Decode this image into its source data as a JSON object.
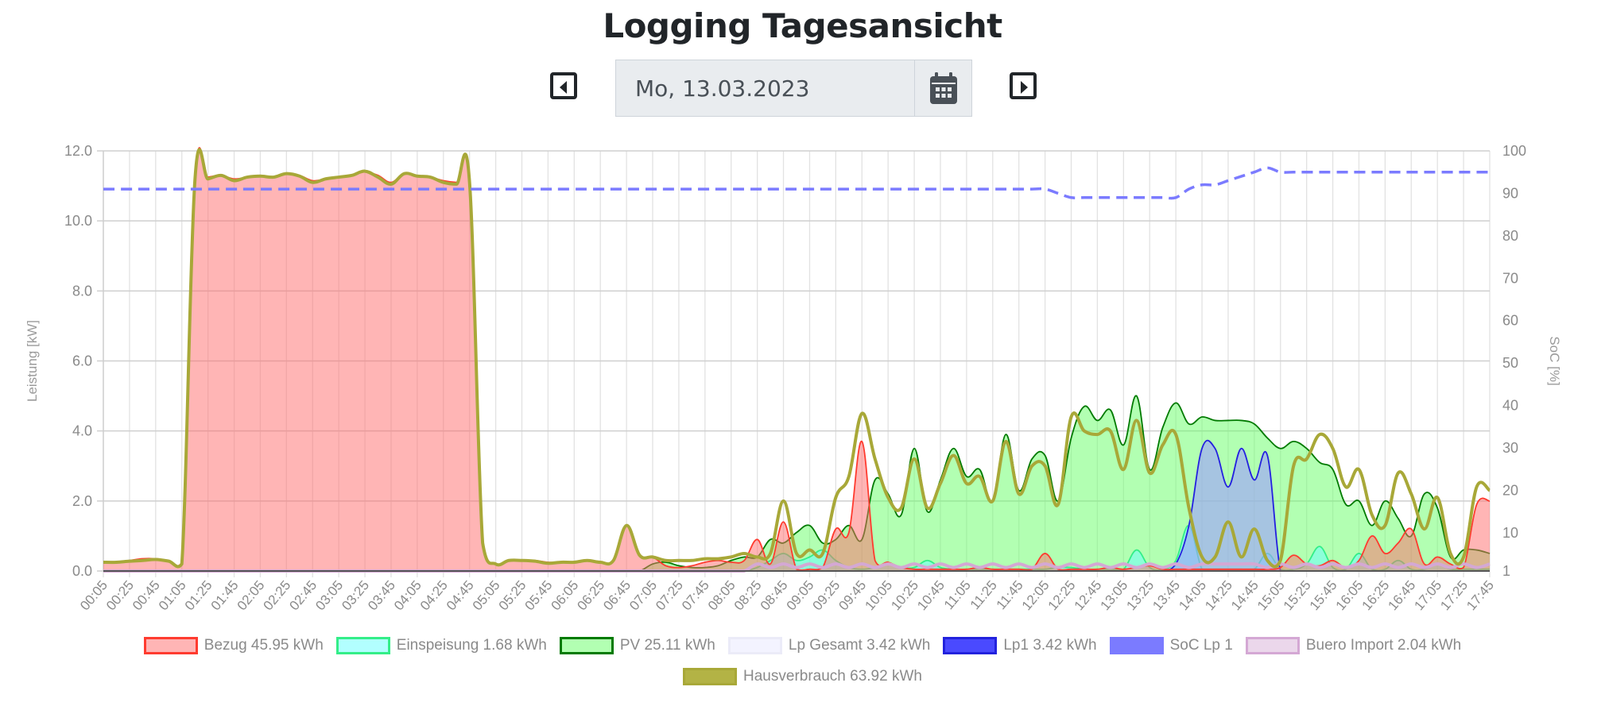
{
  "header": {
    "title": "Logging Tagesansicht",
    "date_value": "Mo, 13.03.2023",
    "prev_icon": "caret-left-square-icon",
    "next_icon": "caret-right-square-icon",
    "calendar_icon": "calendar-icon"
  },
  "chart_data": {
    "type": "line",
    "title": "",
    "ylabel": "Leistung [kW]",
    "y2label": "SoC [%]",
    "ylim": [
      0,
      12
    ],
    "y2lim": [
      1,
      100
    ],
    "yticks": [
      "0.0",
      "2.0",
      "4.0",
      "6.0",
      "8.0",
      "10.0",
      "12.0"
    ],
    "y2ticks": [
      "1",
      "10",
      "20",
      "30",
      "40",
      "50",
      "60",
      "70",
      "80",
      "90",
      "100"
    ],
    "grid": true,
    "legend_placement": "bottom",
    "x": [
      "00:05",
      "00:15",
      "00:25",
      "00:35",
      "00:45",
      "00:55",
      "01:05",
      "01:15",
      "01:25",
      "01:35",
      "01:45",
      "01:55",
      "02:05",
      "02:15",
      "02:25",
      "02:35",
      "02:45",
      "02:55",
      "03:05",
      "03:15",
      "03:25",
      "03:35",
      "03:45",
      "03:55",
      "04:05",
      "04:15",
      "04:25",
      "04:35",
      "04:45",
      "04:55",
      "05:05",
      "05:15",
      "05:25",
      "05:35",
      "05:45",
      "05:55",
      "06:05",
      "06:15",
      "06:25",
      "06:35",
      "06:45",
      "06:55",
      "07:05",
      "07:15",
      "07:25",
      "07:35",
      "07:45",
      "07:55",
      "08:05",
      "08:15",
      "08:25",
      "08:35",
      "08:45",
      "08:55",
      "09:05",
      "09:15",
      "09:25",
      "09:35",
      "09:45",
      "09:55",
      "10:05",
      "10:15",
      "10:25",
      "10:35",
      "10:45",
      "10:55",
      "11:05",
      "11:15",
      "11:25",
      "11:35",
      "11:45",
      "11:55",
      "12:05",
      "12:15",
      "12:25",
      "12:35",
      "12:45",
      "12:55",
      "13:05",
      "13:15",
      "13:25",
      "13:35",
      "13:45",
      "13:55",
      "14:05",
      "14:15",
      "14:25",
      "14:35",
      "14:45",
      "14:55",
      "15:05",
      "15:15",
      "15:25",
      "15:35",
      "15:45",
      "15:55",
      "16:05",
      "16:15",
      "16:25",
      "16:35",
      "16:45",
      "16:55",
      "17:05",
      "17:15",
      "17:25",
      "17:35",
      "17:45"
    ],
    "series": [
      {
        "name": "Bezug 45.95 kWh",
        "key": "bezug",
        "axis": "left",
        "fill": true,
        "line_color": "#ff3b2f",
        "fill_color": "#ff6b6b",
        "values": [
          0.25,
          0.25,
          0.3,
          0.35,
          0.35,
          0.3,
          0.25,
          11.2,
          11.25,
          11.3,
          11.2,
          11.25,
          11.3,
          11.25,
          11.35,
          11.3,
          11.15,
          11.2,
          11.25,
          11.3,
          11.4,
          11.3,
          11.1,
          11.35,
          11.3,
          11.25,
          11.15,
          11.1,
          11.1,
          0.8,
          0.2,
          0.3,
          0.3,
          0.3,
          0.25,
          0.25,
          0.25,
          0.3,
          0.25,
          0.3,
          1.3,
          0.45,
          0.4,
          0.15,
          0.1,
          0.15,
          0.25,
          0.3,
          0.25,
          0.3,
          0.9,
          0.2,
          1.4,
          0.05,
          0.05,
          0.1,
          1.2,
          1.1,
          3.7,
          0.3,
          0.25,
          0.1,
          0.05,
          0.05,
          0.05,
          0.05,
          0.05,
          0.1,
          0.05,
          0.05,
          0.05,
          0.05,
          0.5,
          0.05,
          0.05,
          0.05,
          0.05,
          0.1,
          0.05,
          0.1,
          0.15,
          0.05,
          0.05,
          0.05,
          0.05,
          0.05,
          0.05,
          0.05,
          0.05,
          0.05,
          0.1,
          0.45,
          0.2,
          0.15,
          0.3,
          0.1,
          0.3,
          1.0,
          0.5,
          0.8,
          1.2,
          0.2,
          0.4,
          0.2,
          0.1,
          1.9,
          2.0
        ]
      },
      {
        "name": "Einspeisung 1.68 kWh",
        "key": "einspeisung",
        "axis": "left",
        "fill": true,
        "line_color": "#33ee88",
        "fill_color": "#66ffff",
        "values": [
          0,
          0,
          0,
          0,
          0,
          0,
          0,
          0,
          0,
          0,
          0,
          0,
          0,
          0,
          0,
          0,
          0,
          0,
          0,
          0,
          0,
          0,
          0,
          0,
          0,
          0,
          0,
          0,
          0,
          0,
          0,
          0,
          0,
          0,
          0,
          0,
          0,
          0,
          0,
          0,
          0,
          0,
          0,
          0,
          0,
          0,
          0,
          0,
          0,
          0,
          0.1,
          0.3,
          0.5,
          0.3,
          0.4,
          0.6,
          0.3,
          0.1,
          0.05,
          0.1,
          0.2,
          0.1,
          0.1,
          0.3,
          0.1,
          0.05,
          0.05,
          0.05,
          0.05,
          0.05,
          0.05,
          0.05,
          0.05,
          0.1,
          0.1,
          0.05,
          0.05,
          0.05,
          0.05,
          0.6,
          0.1,
          0.05,
          0.3,
          1.3,
          0.05,
          0.05,
          0.05,
          0.05,
          0.05,
          0.5,
          0.05,
          0.05,
          0.2,
          0.7,
          0.1,
          0.05,
          0.5,
          0.05,
          0.05,
          0.3,
          0.05,
          0.05,
          0.2,
          0.05,
          0.05,
          0.05,
          0.05
        ]
      },
      {
        "name": "PV 25.11 kWh",
        "key": "pv",
        "axis": "left",
        "fill": true,
        "line_color": "#007a00",
        "fill_color": "#66ff66",
        "values": [
          0,
          0,
          0,
          0,
          0,
          0,
          0,
          0,
          0,
          0,
          0,
          0,
          0,
          0,
          0,
          0,
          0,
          0,
          0,
          0,
          0,
          0,
          0,
          0,
          0,
          0,
          0,
          0,
          0,
          0,
          0,
          0,
          0,
          0,
          0,
          0,
          0,
          0,
          0,
          0,
          0,
          0,
          0.2,
          0.25,
          0.15,
          0.1,
          0.1,
          0.15,
          0.3,
          0.4,
          0.4,
          0.9,
          0.8,
          1.1,
          1.3,
          0.8,
          0.9,
          1.3,
          0.9,
          2.6,
          2.2,
          1.6,
          3.5,
          1.7,
          2.6,
          3.5,
          2.7,
          2.9,
          2.0,
          3.9,
          2.3,
          3.2,
          3.3,
          2.0,
          3.8,
          4.7,
          4.3,
          4.6,
          3.6,
          5.0,
          2.9,
          4.1,
          4.8,
          4.2,
          4.4,
          4.3,
          4.3,
          4.3,
          4.2,
          3.8,
          3.5,
          3.7,
          3.5,
          3.1,
          2.9,
          1.9,
          2.0,
          1.3,
          2.0,
          1.5,
          1.0,
          2.2,
          1.8,
          0.4,
          0.6,
          0.6,
          0.5
        ]
      },
      {
        "name": "Lp Gesamt 3.42 kWh",
        "key": "lpgesamt",
        "axis": "left",
        "fill": true,
        "line_color": "#d8d8f2",
        "fill_color": "#d0d0ff",
        "values": [
          0,
          0,
          0,
          0,
          0,
          0,
          0,
          0,
          0,
          0,
          0,
          0,
          0,
          0,
          0,
          0,
          0,
          0,
          0,
          0,
          0,
          0,
          0,
          0,
          0,
          0,
          0,
          0,
          0,
          0,
          0,
          0,
          0,
          0,
          0,
          0,
          0,
          0,
          0,
          0,
          0,
          0,
          0,
          0,
          0,
          0,
          0,
          0,
          0,
          0,
          0,
          0,
          0,
          0,
          0,
          0,
          0,
          0,
          0,
          0,
          0,
          0,
          0,
          0,
          0,
          0,
          0,
          0,
          0,
          0,
          0,
          0,
          0,
          0,
          0,
          0,
          0,
          0,
          0,
          0,
          0,
          0,
          0.2,
          1.3,
          3.5,
          3.5,
          2.4,
          3.5,
          2.6,
          3.3,
          0,
          0,
          0,
          0,
          0,
          0,
          0,
          0,
          0,
          0,
          0,
          0,
          0,
          0,
          0,
          0,
          0
        ]
      },
      {
        "name": "Lp1 3.42 kWh",
        "key": "lp1",
        "axis": "left",
        "fill": true,
        "line_color": "#2222dd",
        "fill_color": "#4a4aff",
        "values": [
          0,
          0,
          0,
          0,
          0,
          0,
          0,
          0,
          0,
          0,
          0,
          0,
          0,
          0,
          0,
          0,
          0,
          0,
          0,
          0,
          0,
          0,
          0,
          0,
          0,
          0,
          0,
          0,
          0,
          0,
          0,
          0,
          0,
          0,
          0,
          0,
          0,
          0,
          0,
          0,
          0,
          0,
          0,
          0,
          0,
          0,
          0,
          0,
          0,
          0,
          0,
          0,
          0,
          0,
          0,
          0,
          0,
          0,
          0,
          0,
          0,
          0,
          0,
          0,
          0,
          0,
          0,
          0,
          0,
          0,
          0,
          0,
          0,
          0,
          0,
          0,
          0,
          0,
          0,
          0,
          0,
          0,
          0.2,
          1.3,
          3.5,
          3.5,
          2.4,
          3.5,
          2.6,
          3.3,
          0,
          0,
          0,
          0,
          0,
          0,
          0,
          0,
          0,
          0,
          0,
          0,
          0,
          0,
          0,
          0,
          0
        ]
      },
      {
        "name": "SoC Lp 1",
        "key": "soc",
        "axis": "right",
        "fill": false,
        "dashed": true,
        "line_color": "#7b7bff",
        "fill_color": "#7b7bff",
        "values": [
          91,
          91,
          91,
          91,
          91,
          91,
          91,
          91,
          91,
          91,
          91,
          91,
          91,
          91,
          91,
          91,
          91,
          91,
          91,
          91,
          91,
          91,
          91,
          91,
          91,
          91,
          91,
          91,
          91,
          91,
          91,
          91,
          91,
          91,
          91,
          91,
          91,
          91,
          91,
          91,
          91,
          91,
          91,
          91,
          91,
          91,
          91,
          91,
          91,
          91,
          91,
          91,
          91,
          91,
          91,
          91,
          91,
          91,
          91,
          91,
          91,
          91,
          91,
          91,
          91,
          91,
          91,
          91,
          91,
          91,
          91,
          91,
          91,
          90,
          89,
          89,
          89,
          89,
          89,
          89,
          89,
          89,
          89,
          91,
          92,
          92,
          93,
          94,
          95,
          96,
          95,
          95,
          95,
          95,
          95,
          95,
          95,
          95,
          95,
          95,
          95,
          95,
          95,
          95,
          95,
          95,
          95
        ]
      },
      {
        "name": "Buero Import 2.04 kWh",
        "key": "buero",
        "axis": "left",
        "fill": false,
        "line_color": "#d4a8d4",
        "fill_color": "#d8b0d8",
        "values": [
          0,
          0,
          0,
          0,
          0,
          0,
          0,
          0,
          0,
          0,
          0,
          0,
          0,
          0,
          0,
          0,
          0,
          0,
          0,
          0,
          0,
          0,
          0,
          0,
          0,
          0,
          0,
          0,
          0,
          0,
          0,
          0,
          0,
          0,
          0,
          0,
          0,
          0,
          0,
          0,
          0,
          0,
          0,
          0,
          0,
          0,
          0,
          0,
          0,
          0,
          0.2,
          0.1,
          0.2,
          0.1,
          0.2,
          0.1,
          0.2,
          0.1,
          0.2,
          0.1,
          0.2,
          0.1,
          0.2,
          0.1,
          0.2,
          0.1,
          0.2,
          0.1,
          0.2,
          0.1,
          0.2,
          0.1,
          0.2,
          0.1,
          0.2,
          0.1,
          0.2,
          0.1,
          0.2,
          0.1,
          0.2,
          0.1,
          0.2,
          0.1,
          0.2,
          0.2,
          0.2,
          0.2,
          0.2,
          0.1,
          0.2,
          0.1,
          0.2,
          0.1,
          0.2,
          0.1,
          0.2,
          0.1,
          0.2,
          0.1,
          0.2,
          0.1,
          0.2,
          0.1,
          0.2,
          0.1,
          0.2
        ]
      },
      {
        "name": "Hausverbrauch 63.92 kWh",
        "key": "haus",
        "axis": "left",
        "fill": false,
        "line_color": "#a8a838",
        "fill_color": "#b3b345",
        "values": [
          0.25,
          0.25,
          0.28,
          0.3,
          0.33,
          0.28,
          0.2,
          11.15,
          11.2,
          11.3,
          11.15,
          11.25,
          11.28,
          11.25,
          11.35,
          11.28,
          11.1,
          11.2,
          11.25,
          11.3,
          11.42,
          11.25,
          11.05,
          11.35,
          11.28,
          11.25,
          11.1,
          11.05,
          11.1,
          0.8,
          0.2,
          0.3,
          0.3,
          0.28,
          0.22,
          0.25,
          0.25,
          0.3,
          0.25,
          0.3,
          1.3,
          0.45,
          0.4,
          0.3,
          0.3,
          0.3,
          0.35,
          0.35,
          0.4,
          0.5,
          0.4,
          0.5,
          2.0,
          0.5,
          0.6,
          0.5,
          2.1,
          2.7,
          4.5,
          3.2,
          2.1,
          1.8,
          3.2,
          1.8,
          2.5,
          3.3,
          2.5,
          2.7,
          2.0,
          3.7,
          2.2,
          3.0,
          3.0,
          1.9,
          4.4,
          4.0,
          3.9,
          4.0,
          2.9,
          4.3,
          2.8,
          3.6,
          3.9,
          1.8,
          0.4,
          0.4,
          1.4,
          0.4,
          1.2,
          0.3,
          0.3,
          3.0,
          3.2,
          3.9,
          3.5,
          2.4,
          2.9,
          1.6,
          1.3,
          2.8,
          2.2,
          1.2,
          2.1,
          0.5,
          0.4,
          2.4,
          2.3
        ]
      }
    ]
  }
}
